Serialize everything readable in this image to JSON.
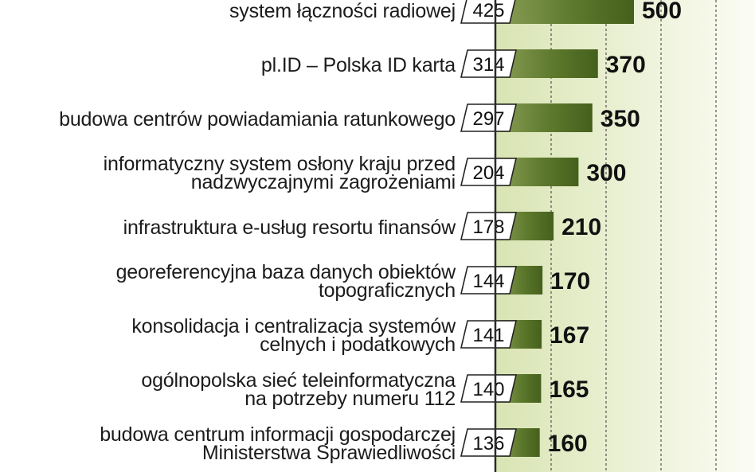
{
  "chart_data": {
    "type": "bar",
    "categories": [
      [
        "system łączności radiowej"
      ],
      [
        "pl.ID – Polska ID karta"
      ],
      [
        "budowa centrów powiadamiania ratunkowego"
      ],
      [
        "informatyczny system osłony kraju przed",
        "nadzwyczajnymi zagrożeniami"
      ],
      [
        "infrastruktura e-usług resortu finansów"
      ],
      [
        "georeferencyjna baza danych obiektów",
        "topograficznych"
      ],
      [
        "konsolidacja i centralizacja systemów",
        "celnych i podatkowych"
      ],
      [
        "ogólnopolska sieć teleinformatyczna",
        "na potrzeby numeru  112"
      ],
      [
        "budowa centrum informacji gospodarczej",
        "Ministerstwa Sprawiedliwości"
      ]
    ],
    "series": [
      {
        "values": [
          425,
          314,
          297,
          204,
          178,
          144,
          141,
          140,
          136
        ]
      },
      {
        "values": [
          500,
          370,
          350,
          300,
          210,
          170,
          167,
          165,
          160
        ]
      }
    ],
    "xlim": [
      0,
      550
    ],
    "grid": "dashed vertical lines",
    "colors": {
      "bar_dark": "#4f6a22",
      "bar_light": "#8c9f58",
      "panel": "#e3ebc8",
      "value_text": "#111111",
      "box_border": "#222222"
    }
  }
}
